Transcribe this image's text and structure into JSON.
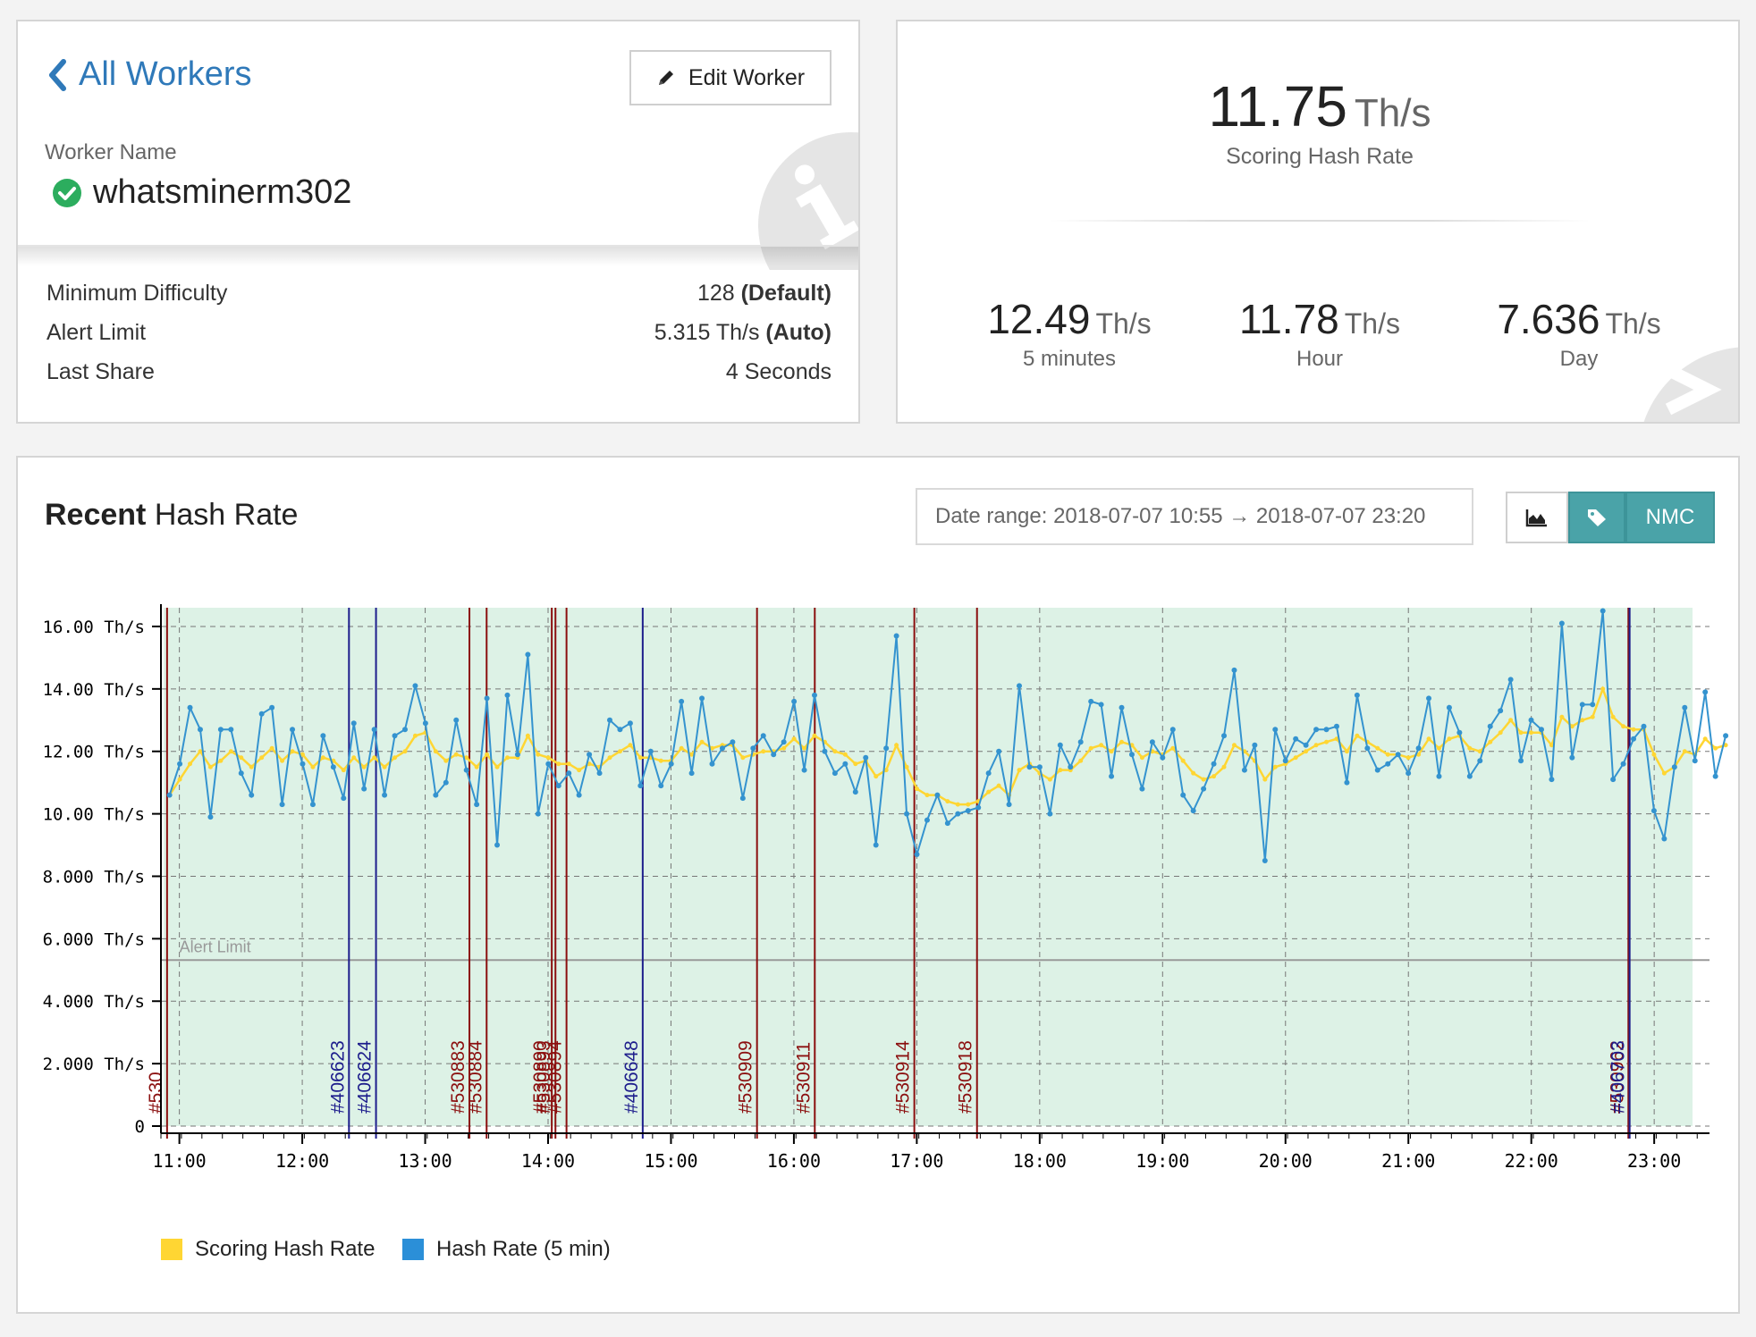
{
  "worker": {
    "back_label": "All Workers",
    "edit_label": "Edit Worker",
    "name_label": "Worker Name",
    "name": "whatsminerm302",
    "details": [
      {
        "label": "Minimum Difficulty",
        "value": "128",
        "suffix": "(Default)"
      },
      {
        "label": "Alert Limit",
        "value": "5.315 Th/s",
        "suffix": "(Auto)"
      },
      {
        "label": "Last Share",
        "value": "4 Seconds",
        "suffix": ""
      }
    ]
  },
  "rates": {
    "scoring": {
      "value": "11.75",
      "unit": "Th/s",
      "label": "Scoring Hash Rate"
    },
    "five_min": {
      "value": "12.49",
      "unit": "Th/s",
      "label": "5 minutes"
    },
    "hour": {
      "value": "11.78",
      "unit": "Th/s",
      "label": "Hour"
    },
    "day": {
      "value": "7.636",
      "unit": "Th/s",
      "label": "Day"
    }
  },
  "chart_panel": {
    "title_bold": "Recent",
    "title_rest": " Hash Rate",
    "date_range": "Date range: 2018-07-07 10:55 → 2018-07-07 23:20",
    "nmc_label": "NMC",
    "legend": [
      {
        "label": "Scoring Hash Rate",
        "color": "#ffd633"
      },
      {
        "label": "Hash Rate (5 min)",
        "color": "#2b8fd8"
      }
    ]
  },
  "colors": {
    "hash": "#3493cf",
    "scoring": "#ffd633",
    "plot_bg": "#ddf2e6",
    "block_red": "#8b0f0f",
    "block_blue": "#1d1d8c",
    "teal": "#4aa3a8"
  },
  "chart_data": {
    "type": "line",
    "xlabel": "",
    "ylabel": "",
    "x_unit": "hours of day",
    "xlim": [
      10.85,
      23.45
    ],
    "ylim": [
      0,
      16.6
    ],
    "y_ticks": [
      0,
      2,
      4,
      6,
      8,
      10,
      12,
      14,
      16
    ],
    "y_tick_labels": [
      "0",
      "2.000 Th/s",
      "4.000 Th/s",
      "6.000 Th/s",
      "8.000 Th/s",
      "10.00 Th/s",
      "12.00 Th/s",
      "14.00 Th/s",
      "16.00 Th/s"
    ],
    "x_ticks": [
      11,
      12,
      13,
      14,
      15,
      16,
      17,
      18,
      19,
      20,
      21,
      22,
      23
    ],
    "x_tick_labels": [
      "11:00",
      "12:00",
      "13:00",
      "14:00",
      "15:00",
      "16:00",
      "17:00",
      "18:00",
      "19:00",
      "20:00",
      "21:00",
      "22:00",
      "23:00"
    ],
    "grid": true,
    "alert_limit": {
      "value": 5.315,
      "label": "Alert Limit"
    },
    "series": [
      {
        "name": "Hash Rate (5 min)",
        "x_start": 10.92,
        "x_step": 0.0833,
        "values": [
          10.6,
          11.6,
          13.4,
          12.7,
          9.9,
          12.7,
          12.7,
          11.3,
          10.6,
          13.2,
          13.4,
          10.3,
          12.7,
          11.6,
          10.3,
          12.5,
          11.5,
          10.5,
          12.9,
          10.8,
          12.7,
          10.6,
          12.5,
          12.7,
          14.1,
          12.9,
          10.6,
          11.0,
          13.0,
          11.4,
          10.3,
          13.7,
          9.0,
          13.8,
          11.9,
          15.1,
          10.0,
          11.6,
          10.9,
          11.3,
          10.6,
          11.9,
          11.3,
          13.0,
          12.7,
          12.9,
          10.9,
          12.0,
          10.9,
          11.6,
          13.6,
          11.3,
          13.7,
          11.6,
          12.1,
          12.3,
          10.5,
          12.1,
          12.5,
          11.9,
          12.3,
          13.6,
          11.4,
          13.8,
          12.0,
          11.3,
          11.6,
          10.7,
          11.8,
          9.0,
          12.1,
          15.7,
          10.0,
          8.7,
          9.8,
          10.6,
          9.7,
          10.0,
          10.1,
          10.2,
          11.3,
          12.0,
          10.3,
          14.1,
          11.5,
          11.5,
          10.0,
          12.2,
          11.5,
          12.3,
          13.6,
          13.5,
          11.2,
          13.4,
          11.9,
          10.8,
          12.3,
          11.8,
          12.7,
          10.6,
          10.1,
          10.8,
          11.6,
          12.5,
          14.6,
          11.4,
          12.2,
          8.5,
          12.7,
          11.7,
          12.4,
          12.2,
          12.7,
          12.7,
          12.8,
          11.0,
          13.8,
          12.1,
          11.4,
          11.6,
          11.9,
          11.3,
          12.1,
          13.7,
          11.2,
          13.4,
          12.6,
          11.2,
          11.7,
          12.8,
          13.3,
          14.3,
          11.7,
          13.0,
          12.7,
          11.1,
          16.1,
          11.8,
          13.5,
          13.5,
          16.5,
          11.1,
          11.6,
          12.4,
          12.8,
          10.1,
          9.2,
          11.5,
          13.4,
          11.7,
          13.9,
          11.2,
          12.5
        ]
      },
      {
        "name": "Scoring Hash Rate",
        "x_start": 10.92,
        "x_step": 0.0833,
        "values": [
          10.6,
          11.1,
          11.6,
          12.0,
          11.5,
          11.7,
          12.0,
          11.8,
          11.5,
          11.8,
          12.1,
          11.7,
          12.0,
          11.9,
          11.5,
          11.8,
          11.7,
          11.4,
          11.8,
          11.5,
          11.8,
          11.5,
          11.8,
          12.0,
          12.5,
          12.6,
          12.0,
          11.7,
          11.9,
          11.8,
          11.5,
          11.9,
          11.5,
          11.8,
          11.8,
          12.5,
          11.9,
          11.8,
          11.6,
          11.6,
          11.4,
          11.6,
          11.5,
          11.8,
          12.0,
          12.2,
          11.8,
          11.8,
          11.7,
          11.7,
          12.1,
          11.9,
          12.3,
          12.1,
          12.2,
          12.2,
          11.8,
          11.9,
          12.0,
          12.0,
          12.1,
          12.4,
          12.1,
          12.5,
          12.3,
          12.0,
          11.9,
          11.6,
          11.7,
          11.2,
          11.4,
          12.2,
          11.5,
          10.8,
          10.6,
          10.6,
          10.4,
          10.3,
          10.3,
          10.4,
          10.7,
          10.9,
          10.6,
          11.4,
          11.6,
          11.3,
          11.1,
          11.4,
          11.4,
          11.7,
          12.1,
          12.2,
          12.0,
          12.3,
          12.2,
          11.8,
          12.0,
          11.9,
          12.1,
          11.7,
          11.3,
          11.1,
          11.2,
          11.5,
          12.2,
          12.0,
          11.7,
          11.1,
          11.5,
          11.6,
          11.8,
          12.0,
          12.2,
          12.3,
          12.4,
          12.0,
          12.5,
          12.3,
          12.1,
          11.9,
          11.9,
          11.8,
          11.9,
          12.4,
          12.1,
          12.4,
          12.5,
          12.1,
          12.0,
          12.3,
          12.6,
          13.0,
          12.6,
          12.6,
          12.6,
          12.2,
          13.1,
          12.8,
          13.0,
          13.1,
          14.0,
          13.1,
          12.8,
          12.7,
          12.7,
          11.9,
          11.3,
          11.5,
          12.0,
          11.9,
          12.4,
          12.1,
          12.2
        ]
      }
    ],
    "block_markers": [
      {
        "x": 10.9,
        "label": "#530",
        "kind": "red"
      },
      {
        "x": 12.38,
        "label": "#406623",
        "kind": "blue"
      },
      {
        "x": 12.6,
        "label": "#406624",
        "kind": "blue"
      },
      {
        "x": 13.36,
        "label": "#530883",
        "kind": "red"
      },
      {
        "x": 13.5,
        "label": "#530884",
        "kind": "red"
      },
      {
        "x": 14.03,
        "label": "#530890",
        "kind": "red"
      },
      {
        "x": 14.06,
        "label": "#530893",
        "kind": "red"
      },
      {
        "x": 14.15,
        "label": "#530894",
        "kind": "red"
      },
      {
        "x": 14.77,
        "label": "#406648",
        "kind": "blue"
      },
      {
        "x": 15.7,
        "label": "#530909",
        "kind": "red"
      },
      {
        "x": 16.17,
        "label": "#530911",
        "kind": "red"
      },
      {
        "x": 16.98,
        "label": "#530914",
        "kind": "red"
      },
      {
        "x": 17.49,
        "label": "#530918",
        "kind": "red"
      },
      {
        "x": 22.79,
        "label": "#530962",
        "kind": "red"
      },
      {
        "x": 22.8,
        "label": "#406703",
        "kind": "blue"
      }
    ]
  }
}
